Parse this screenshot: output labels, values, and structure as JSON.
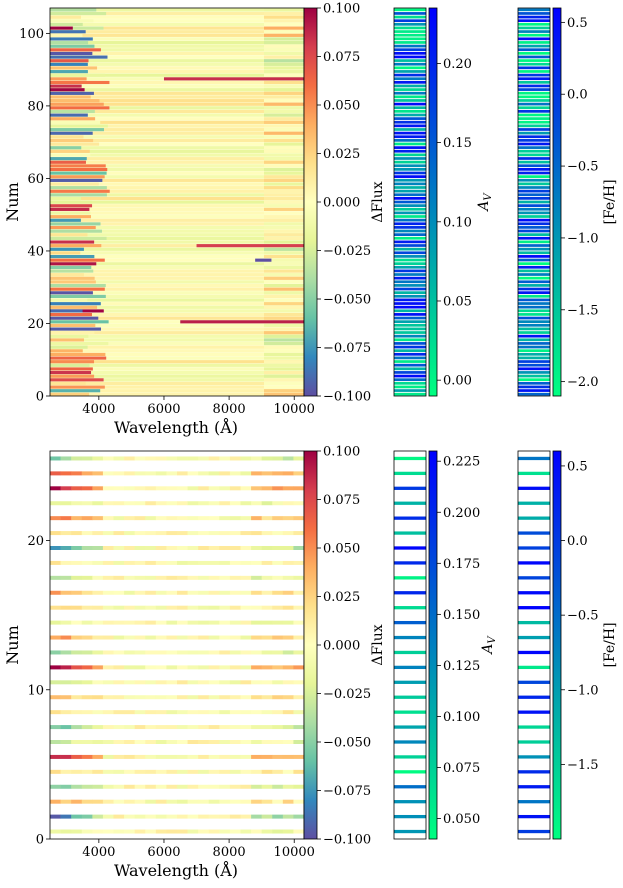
{
  "chart_data": [
    {
      "type": "heatmap",
      "panel": "top",
      "title": "",
      "xlabel": "Wavelength (Å)",
      "ylabel": "Num",
      "xlim": [
        2500,
        10300
      ],
      "ylim": [
        0,
        107
      ],
      "xticks": [
        4000,
        6000,
        8000,
        10000
      ],
      "xtick_labels": [
        "4000",
        "6000",
        "8000",
        "10000"
      ],
      "yticks": [
        0,
        20,
        40,
        60,
        80,
        100
      ],
      "ytick_labels": [
        "0",
        "20",
        "40",
        "60",
        "80",
        "100"
      ],
      "n_rows": 107,
      "colormap": "Spectral_r",
      "colorbar": {
        "label": "ΔFlux",
        "range": [
          -0.1,
          0.1
        ],
        "ticks": [
          -0.1,
          -0.075,
          -0.05,
          -0.025,
          0.0,
          0.025,
          0.05,
          0.075,
          0.1
        ],
        "tick_labels": [
          "−0.100",
          "−0.075",
          "−0.050",
          "−0.025",
          "0.000",
          "0.025",
          "0.050",
          "0.075",
          "0.100"
        ]
      },
      "highlight_rows": [
        {
          "row": 87,
          "start": 6000,
          "end": 10300,
          "value": 0.085
        },
        {
          "row": 20,
          "start": 6500,
          "end": 10300,
          "value": 0.09
        },
        {
          "row": 41,
          "start": 7000,
          "end": 10300,
          "value": 0.08
        },
        {
          "row": 101,
          "start": 2500,
          "end": 3200,
          "value": 0.1
        },
        {
          "row": 23,
          "start": 2500,
          "end": 3500,
          "value": -0.09
        },
        {
          "row": 37,
          "start": 8800,
          "end": 9300,
          "value": -0.1
        }
      ]
    },
    {
      "type": "heatmap",
      "panel": "bottom",
      "title": "",
      "xlabel": "Wavelength (Å)",
      "ylabel": "Num",
      "xlim": [
        2500,
        10300
      ],
      "ylim": [
        0,
        26
      ],
      "xticks": [
        4000,
        6000,
        8000,
        10000
      ],
      "xtick_labels": [
        "4000",
        "6000",
        "8000",
        "10000"
      ],
      "yticks": [
        0,
        10,
        20
      ],
      "ytick_labels": [
        "0",
        "10",
        "20"
      ],
      "n_rows": 26,
      "colormap": "Spectral_r",
      "colorbar": {
        "label": "ΔFlux",
        "range": [
          -0.1,
          0.1
        ],
        "ticks": [
          -0.1,
          -0.075,
          -0.05,
          -0.025,
          0.0,
          0.025,
          0.05,
          0.075,
          0.1
        ],
        "tick_labels": [
          "−0.100",
          "−0.075",
          "−0.050",
          "−0.025",
          "0.000",
          "0.025",
          "0.050",
          "0.075",
          "0.100"
        ]
      },
      "row_starts": [
        -0.02,
        -0.09,
        0.04,
        -0.05,
        0.02,
        0.09,
        -0.03,
        -0.06,
        0.01,
        0.03,
        -0.02,
        0.1,
        -0.04,
        0.05,
        -0.01,
        0.02,
        0.04,
        -0.03,
        0.01,
        -0.07,
        0.02,
        0.06,
        -0.02,
        0.1,
        0.07,
        -0.05
      ]
    },
    {
      "type": "colorbar_strip",
      "panel": "top",
      "label": "A_V",
      "range": [
        -0.01,
        0.235
      ],
      "ticks": [
        0.0,
        0.05,
        0.1,
        0.15,
        0.2
      ],
      "tick_labels": [
        "0.00",
        "0.05",
        "0.10",
        "0.15",
        "0.20"
      ],
      "n_rows": 107
    },
    {
      "type": "colorbar_strip",
      "panel": "top",
      "label": "[Fe/H]",
      "range": [
        -2.1,
        0.6
      ],
      "ticks": [
        -2.0,
        -1.5,
        -1.0,
        -0.5,
        0.0,
        0.5
      ],
      "tick_labels": [
        "−2.0",
        "−1.5",
        "−1.0",
        "−0.5",
        "0.0",
        "0.5"
      ],
      "n_rows": 107
    },
    {
      "type": "colorbar_strip",
      "panel": "bottom",
      "label": "A_V",
      "range": [
        0.04,
        0.23
      ],
      "ticks": [
        0.05,
        0.075,
        0.1,
        0.125,
        0.15,
        0.175,
        0.2,
        0.225
      ],
      "tick_labels": [
        "0.050",
        "0.075",
        "0.100",
        "0.125",
        "0.150",
        "0.175",
        "0.200",
        "0.225"
      ],
      "n_rows": 26
    },
    {
      "type": "colorbar_strip",
      "panel": "bottom",
      "label": "[Fe/H]",
      "range": [
        -2.0,
        0.6
      ],
      "ticks": [
        -1.5,
        -1.0,
        -0.5,
        0.0,
        0.5
      ],
      "tick_labels": [
        "−1.5",
        "−1.0",
        "−0.5",
        "0.0",
        "0.5"
      ],
      "n_rows": 26
    }
  ],
  "labels": {
    "top_xlabel": "Wavelength (Å)",
    "top_ylabel": "Num",
    "top_cbar": "ΔFlux",
    "top_av": "A",
    "top_av_sub": "V",
    "top_feh": "[Fe/H]",
    "bottom_xlabel": "Wavelength (Å)",
    "bottom_ylabel": "Num",
    "bottom_cbar": "ΔFlux",
    "bottom_av": "A",
    "bottom_av_sub": "V",
    "bottom_feh": "[Fe/H]"
  }
}
